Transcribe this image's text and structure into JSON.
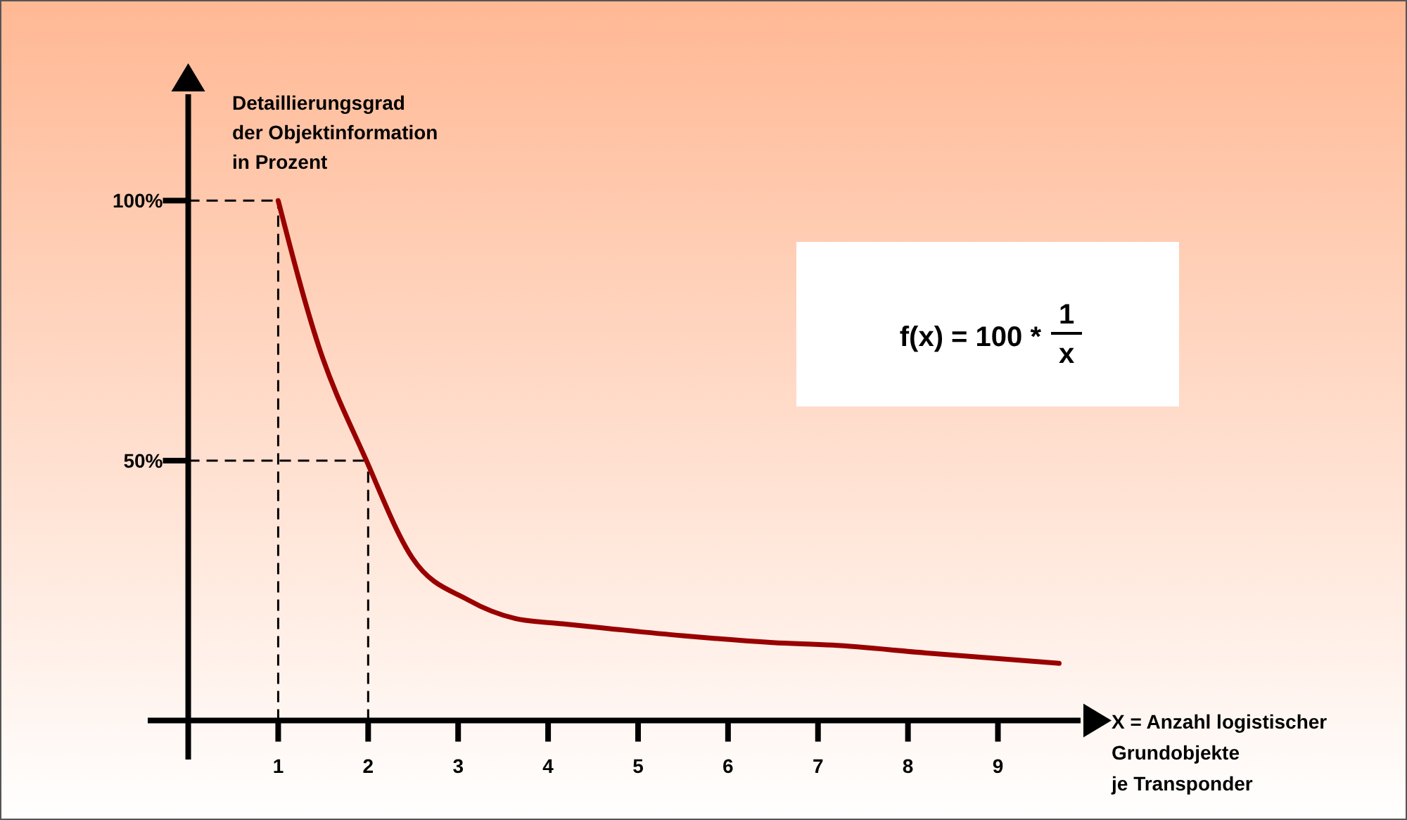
{
  "chart_data": {
    "type": "line",
    "xlabel": "X = Anzahl logistischer\nGrundobjekte\nje Transponder",
    "ylabel": "Detaillierungsgrad\nder Objektinformation\nin Prozent",
    "x": [
      1,
      1.45,
      1.97,
      2.49,
      3.11,
      3.64,
      4.16,
      4.67,
      5.5,
      6.5,
      7.16,
      8.2,
      9.68
    ],
    "series": [
      {
        "color": "#990000",
        "values": [
          100,
          72,
          50.4,
          31.3,
          23.2,
          19.6,
          18.6,
          17.7,
          16.3,
          15,
          14.5,
          13,
          11
        ]
      }
    ],
    "xlim": [
      -0.45,
      9.95
    ],
    "ylim": [
      -7.5,
      121
    ],
    "xticks": [
      1,
      2,
      3,
      4,
      5,
      6,
      7,
      8,
      9
    ],
    "yticks": [
      {
        "value": 50,
        "label": "50%"
      },
      {
        "value": 100,
        "label": "100%"
      }
    ],
    "ref_lines": [
      {
        "axis": "x",
        "value": 1,
        "line_style": "dashed"
      },
      {
        "axis": "x",
        "value": 2,
        "line_style": "dashed"
      },
      {
        "axis": "y",
        "value": 50,
        "line_style": "dashed"
      },
      {
        "axis": "y",
        "value": 100,
        "line_style": "dashed"
      }
    ],
    "annotations": [
      "f(x) = 100 *",
      "1",
      "x"
    ],
    "grid": false,
    "marker": "none",
    "line_style": "solid"
  }
}
